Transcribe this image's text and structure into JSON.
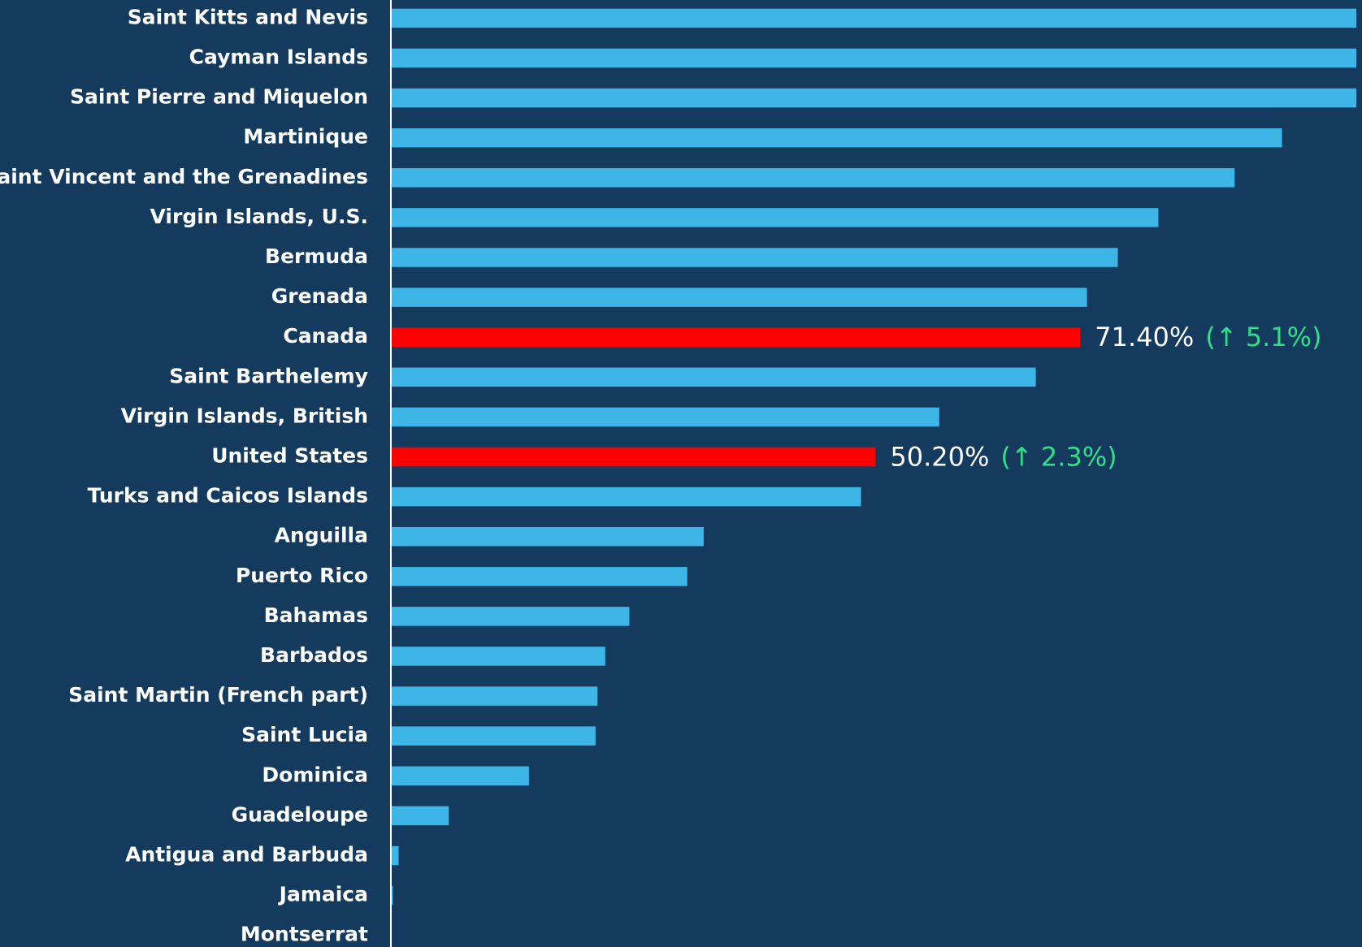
{
  "chart_data": {
    "type": "bar",
    "orientation": "horizontal",
    "categories": [
      "Saint Kitts and Nevis",
      "Cayman Islands",
      "Saint Pierre and Miquelon",
      "Martinique",
      "Saint Vincent and the Grenadines",
      "Virgin Islands, U.S.",
      "Bermuda",
      "Grenada",
      "Canada",
      "Saint Barthelemy",
      "Virgin Islands, British",
      "United States",
      "Turks and Caicos Islands",
      "Anguilla",
      "Puerto Rico",
      "Bahamas",
      "Barbados",
      "Saint Martin (French part)",
      "Saint Lucia",
      "Dominica",
      "Guadeloupe",
      "Antigua and Barbuda",
      "Jamaica",
      "Montserrat"
    ],
    "values": [
      100,
      100,
      100,
      92.3,
      87.4,
      79.5,
      75.3,
      72.1,
      71.4,
      66.8,
      56.8,
      50.2,
      48.7,
      32.4,
      30.7,
      24.7,
      22.2,
      21.4,
      21.2,
      14.3,
      6.0,
      0.8,
      0.2,
      0
    ],
    "value_labels": [
      null,
      null,
      null,
      null,
      null,
      null,
      null,
      null,
      "71.40%",
      null,
      null,
      "50.20%",
      null,
      null,
      null,
      null,
      null,
      null,
      null,
      null,
      null,
      null,
      null,
      null
    ],
    "annotations": [
      null,
      null,
      null,
      null,
      null,
      null,
      null,
      null,
      "(↑ 5.1%)",
      null,
      null,
      "(↑ 2.3%)",
      null,
      null,
      null,
      null,
      null,
      null,
      null,
      null,
      null,
      null,
      null,
      null
    ],
    "color": "#3db5e6",
    "highlight_color": "#ff0000",
    "highlight": [
      "Canada",
      "United States"
    ],
    "xlim": [
      0,
      100
    ]
  }
}
